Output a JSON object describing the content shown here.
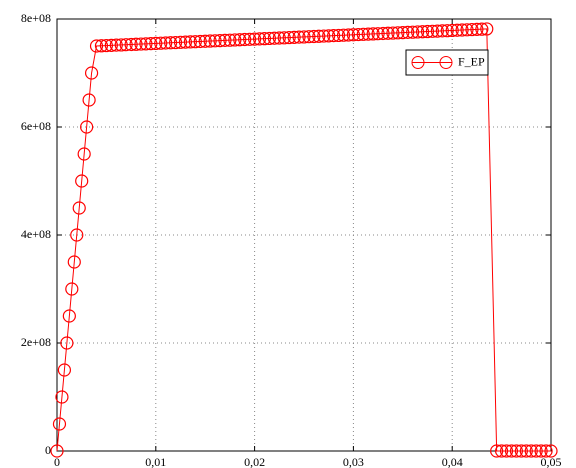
{
  "chart_data": {
    "type": "line",
    "x": [
      0,
      0.00025,
      0.0005,
      0.00075,
      0.001,
      0.00125,
      0.0015,
      0.00175,
      0.002,
      0.00225,
      0.0025,
      0.00275,
      0.003,
      0.00325,
      0.0035,
      0.004,
      0.0045,
      0.005,
      0.0055,
      0.006,
      0.0065,
      0.007,
      0.0075,
      0.008,
      0.0085,
      0.009,
      0.0095,
      0.01,
      0.0105,
      0.011,
      0.0115,
      0.012,
      0.0125,
      0.013,
      0.0135,
      0.014,
      0.0145,
      0.015,
      0.0155,
      0.016,
      0.0165,
      0.017,
      0.0175,
      0.018,
      0.0185,
      0.019,
      0.0195,
      0.02,
      0.0205,
      0.021,
      0.0215,
      0.022,
      0.0225,
      0.023,
      0.0235,
      0.024,
      0.0245,
      0.025,
      0.0255,
      0.026,
      0.0265,
      0.027,
      0.0275,
      0.028,
      0.0285,
      0.029,
      0.0295,
      0.03,
      0.0305,
      0.031,
      0.0315,
      0.032,
      0.0325,
      0.033,
      0.0335,
      0.034,
      0.0345,
      0.035,
      0.0355,
      0.036,
      0.0365,
      0.037,
      0.0375,
      0.038,
      0.0385,
      0.039,
      0.0395,
      0.04,
      0.0405,
      0.041,
      0.0415,
      0.042,
      0.0425,
      0.043,
      0.0435,
      0.0445,
      0.045,
      0.0455,
      0.046,
      0.0465,
      0.047,
      0.0475,
      0.048,
      0.0485,
      0.049,
      0.0495,
      0.05
    ],
    "series": [
      {
        "name": "F_EP",
        "color": "#ff0000",
        "values": [
          0,
          50000000,
          100000000,
          150000000,
          200000000,
          250000000,
          300000000,
          350000000,
          400000000,
          450000000,
          500000000,
          550000000,
          600000000,
          650000000,
          700000000,
          750000000,
          750400000,
          750800000,
          751200000,
          751600000,
          752000000,
          752400000,
          752800000,
          753200000,
          753600000,
          754000000,
          754400000,
          754800000,
          755200000,
          755600000,
          756000000,
          756400000,
          756800000,
          757200000,
          757600000,
          758000000,
          758400000,
          758800000,
          759200000,
          759600000,
          760000000,
          760400000,
          760800000,
          761200000,
          761600000,
          762000000,
          762400000,
          762800000,
          763200000,
          763600000,
          764000000,
          764400000,
          764800000,
          765200000,
          765600000,
          766000000,
          766400000,
          766800000,
          767200000,
          767600000,
          768000000,
          768400000,
          768800000,
          769200000,
          769600000,
          770000000,
          770400000,
          770800000,
          771200000,
          771600000,
          772000000,
          772400000,
          772800000,
          773200000,
          773600000,
          774000000,
          774400000,
          774800000,
          775200000,
          775600000,
          776000000,
          776400000,
          776800000,
          777200000,
          777600000,
          778000000,
          778400000,
          778800000,
          779200000,
          779600000,
          780000000,
          780400000,
          780800000,
          781200000,
          781600000,
          0,
          0,
          0,
          0,
          0,
          0,
          0,
          0,
          0,
          0,
          0,
          0
        ]
      }
    ],
    "xlim": [
      0,
      0.05
    ],
    "xticks": [
      0,
      {
        "value": 0.01,
        "label": "0,01"
      },
      {
        "value": 0.02,
        "label": "0,02"
      },
      {
        "value": 0.03,
        "label": "0,03"
      },
      {
        "value": 0.04,
        "label": "0,04"
      },
      {
        "value": 0.05,
        "label": "0,05"
      }
    ],
    "ylim": [
      0,
      800000000
    ],
    "yticks": [
      0,
      {
        "value": 200000000,
        "label": "2e+08"
      },
      {
        "value": 400000000,
        "label": "4e+08"
      },
      {
        "value": 600000000,
        "label": "6e+08"
      },
      {
        "value": 800000000,
        "label": "8e+08"
      }
    ],
    "grid": true,
    "legend": "top right"
  }
}
